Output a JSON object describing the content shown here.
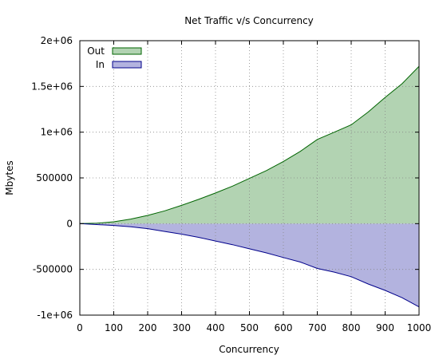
{
  "chart_data": {
    "type": "area",
    "title": "Net Traffic v/s Concurrency",
    "xlabel": "Concurrency",
    "ylabel": "Mbytes",
    "xlim": [
      0,
      1000
    ],
    "ylim": [
      -1000000,
      2000000
    ],
    "x_ticks": [
      0,
      100,
      200,
      300,
      400,
      500,
      600,
      700,
      800,
      900,
      1000
    ],
    "x_tick_labels": [
      "0",
      "100",
      "200",
      "300",
      "400",
      "500",
      "600",
      "700",
      "800",
      "900",
      "1000"
    ],
    "y_ticks": [
      -1000000,
      -500000,
      0,
      500000,
      1000000,
      1500000,
      2000000
    ],
    "y_tick_labels": [
      "-1e+06",
      "-500000",
      "0",
      "500000",
      "1e+06",
      "1.5e+06",
      "2e+06"
    ],
    "grid": true,
    "legend_position": "top-left",
    "x": [
      0,
      50,
      100,
      150,
      200,
      250,
      300,
      350,
      400,
      450,
      500,
      550,
      600,
      650,
      700,
      750,
      800,
      850,
      900,
      950,
      1000
    ],
    "series": [
      {
        "name": "Out",
        "fill": "#b2d3b2",
        "stroke": "#006400",
        "values": [
          0,
          5000,
          20000,
          50000,
          90000,
          140000,
          200000,
          265000,
          335000,
          410000,
          495000,
          580000,
          680000,
          790000,
          920000,
          1000000,
          1080000,
          1220000,
          1380000,
          1530000,
          1720000
        ]
      },
      {
        "name": "In",
        "fill": "#b3b3df",
        "stroke": "#00008b",
        "values": [
          0,
          -10000,
          -20000,
          -35000,
          -55000,
          -85000,
          -115000,
          -150000,
          -190000,
          -230000,
          -275000,
          -320000,
          -370000,
          -420000,
          -490000,
          -530000,
          -580000,
          -660000,
          -730000,
          -810000,
          -910000
        ]
      }
    ]
  }
}
